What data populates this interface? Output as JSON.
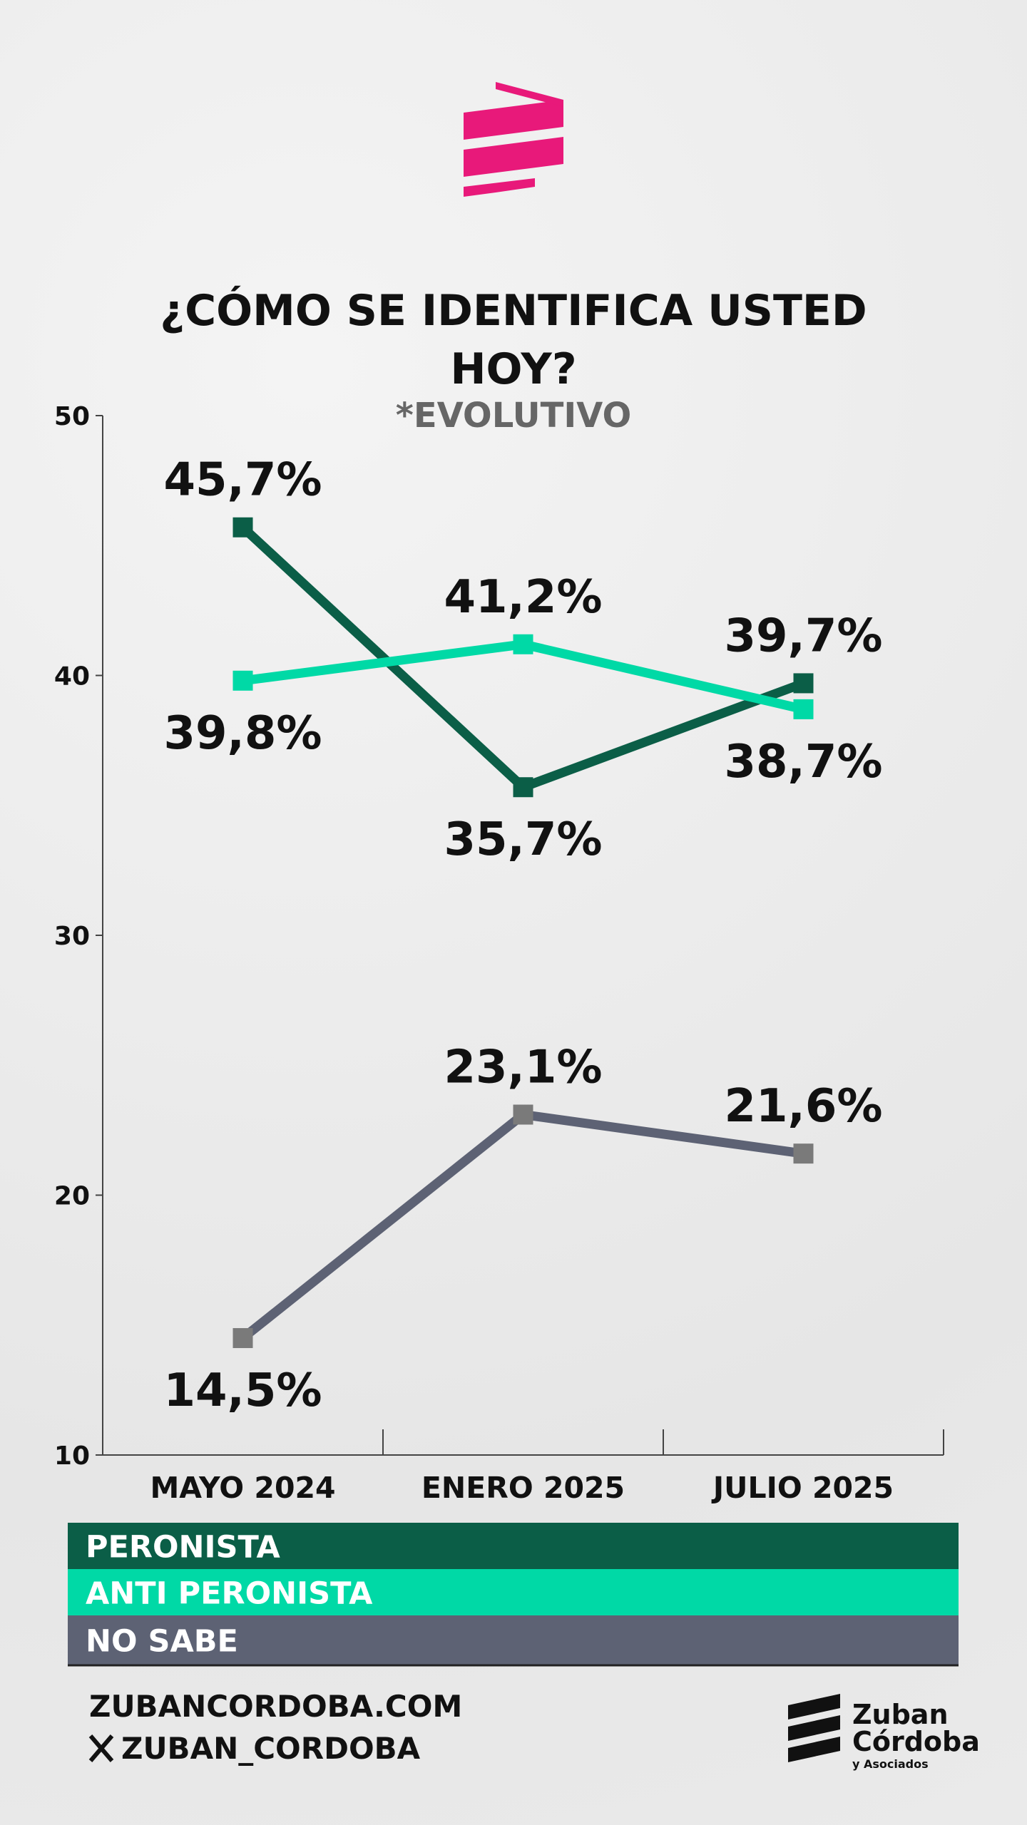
{
  "chart_data": {
    "type": "line",
    "title": "¿CÓMO SE IDENTIFICA USTED HOY?",
    "subtitle": "*EVOLUTIVO",
    "categories": [
      "MAYO 2024",
      "ENERO 2025",
      "JULIO 2025"
    ],
    "series": [
      {
        "name": "PERONISTA",
        "color": "#0b5e47",
        "values": [
          45.7,
          35.7,
          39.7
        ],
        "value_labels": [
          "45,7%",
          "35,7%",
          "39,7%"
        ]
      },
      {
        "name": "ANTI PERONISTA",
        "color": "#00d9a6",
        "values": [
          39.8,
          41.2,
          38.7
        ],
        "value_labels": [
          "39,8%",
          "41,2%",
          "38,7%"
        ]
      },
      {
        "name": "NO SABE",
        "color": "#5d6274",
        "values": [
          14.5,
          23.1,
          21.6
        ],
        "value_labels": [
          "14,5%",
          "23,1%",
          "21,6%"
        ]
      }
    ],
    "ylim": [
      10,
      50
    ],
    "yticks": [
      10,
      20,
      30,
      40,
      50
    ]
  },
  "footer": {
    "website": "ZUBANCORDOBA.COM",
    "handle": "ZUBAN_CORDOBA",
    "logo": {
      "line1": "Zuban",
      "line2": "Córdoba",
      "line3": "y Asociados"
    }
  }
}
